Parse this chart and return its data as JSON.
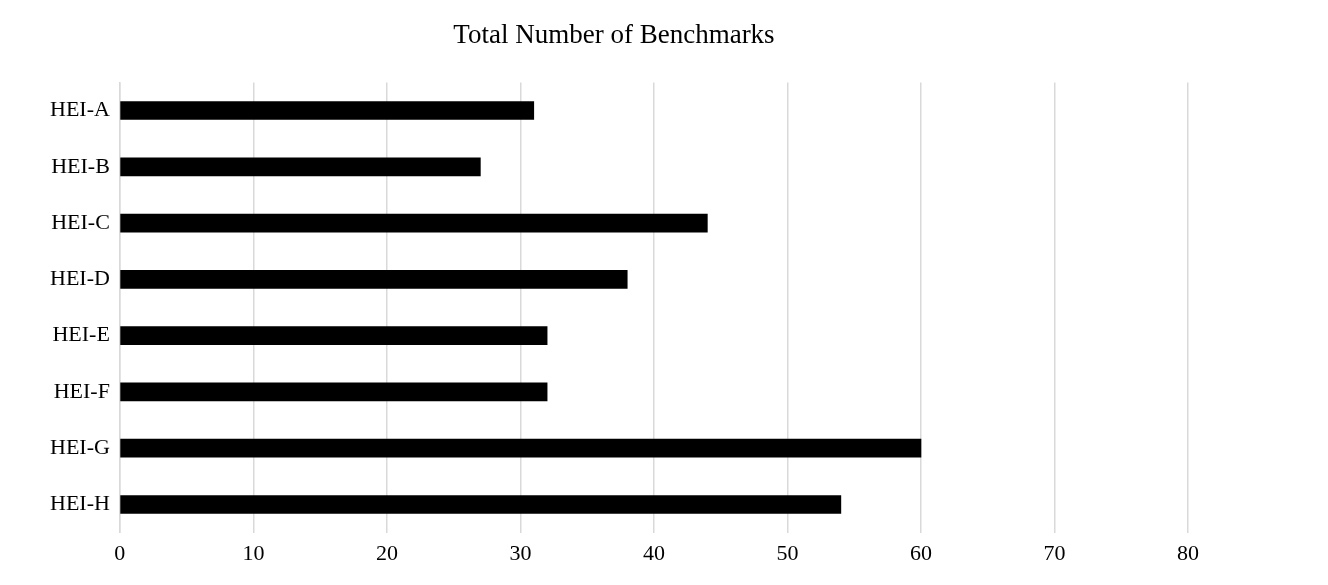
{
  "chart_data": {
    "type": "bar",
    "orientation": "horizontal",
    "title": "Total Number of Benchmarks",
    "categories": [
      "HEI-A",
      "HEI-B",
      "HEI-C",
      "HEI-D",
      "HEI-E",
      "HEI-F",
      "HEI-G",
      "HEI-H"
    ],
    "values": [
      31,
      27,
      44,
      38,
      32,
      32,
      60,
      54
    ],
    "color": "#000000",
    "xlim": [
      0,
      80
    ],
    "xticks": [
      0,
      10,
      20,
      30,
      40,
      50,
      60,
      70,
      80
    ],
    "grid": "x",
    "legend": false
  }
}
